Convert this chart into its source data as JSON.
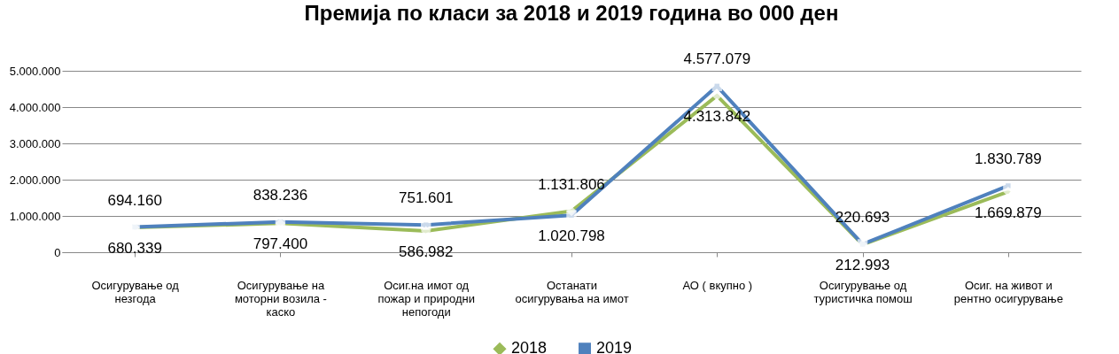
{
  "chart_data": {
    "type": "line",
    "title": "Премија по класи за 2018 и 2019 година во 000 ден",
    "categories": [
      "Осигурување од незгода",
      "Осигурување на моторни возила - каско",
      "Осиг.на имот од пожар и природни непогоди",
      "Останати осигурувања на имот",
      "АО ( вкупно )",
      "Осигурување од туристичка помош",
      "Осиг. на живот и рентно осигурување"
    ],
    "series": [
      {
        "name": "2018",
        "color": "#9bbb59",
        "marker": "diamond",
        "values": [
          680339,
          797400,
          586982,
          1131806,
          4313842,
          212993,
          1669879
        ],
        "value_labels": [
          "680.339",
          "797.400",
          "586.982",
          "1.131.806",
          "4.313.842",
          "212.993",
          "1.669.879"
        ]
      },
      {
        "name": "2019",
        "color": "#4f81bd",
        "marker": "square",
        "values": [
          694160,
          838236,
          751601,
          1020798,
          4577079,
          220693,
          1830789
        ],
        "value_labels": [
          "694.160",
          "838.236",
          "751.601",
          "1.020.798",
          "4.577.079",
          "220.693",
          "1.830.789"
        ]
      }
    ],
    "ylim": [
      0,
      5000000
    ],
    "yticks": [
      0,
      {
        "value": 1000000,
        "label": "1.000.000"
      },
      {
        "value": 2000000,
        "label": "2.000.000"
      },
      {
        "value": 3000000,
        "label": "3.000.000"
      },
      {
        "value": 4000000,
        "label": "4.000.000"
      },
      {
        "value": 5000000,
        "label": "5.000.000"
      }
    ],
    "grid": "y",
    "legend": "bottom"
  }
}
